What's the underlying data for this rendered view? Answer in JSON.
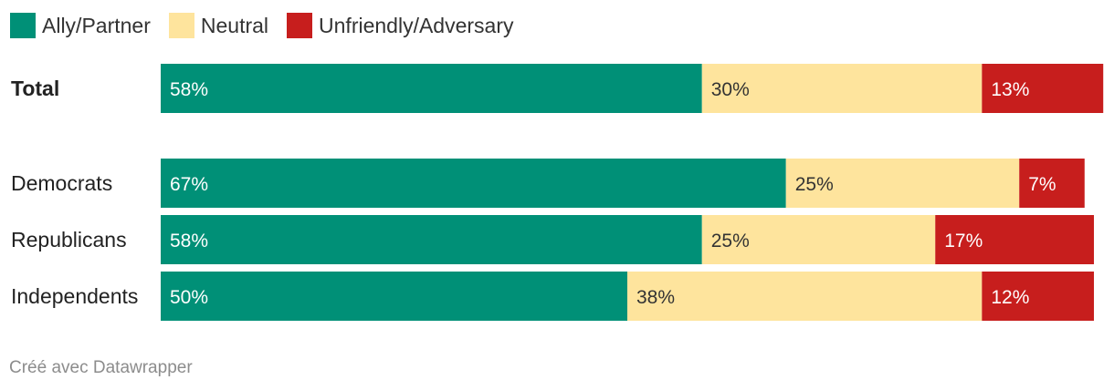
{
  "legend": [
    {
      "label": "Ally/Partner",
      "color": "#009077"
    },
    {
      "label": "Neutral",
      "color": "#fee49d"
    },
    {
      "label": "Unfriendly/Adversary",
      "color": "#c71e1d"
    }
  ],
  "chart_data": {
    "type": "bar",
    "orientation": "horizontal",
    "stacked": true,
    "legend_placement": "top-left",
    "categories": [
      "Total",
      "Democrats",
      "Republicans",
      "Independents"
    ],
    "series": [
      {
        "name": "Ally/Partner",
        "color": "#009077",
        "label_color": "#ffffff",
        "values": [
          58,
          67,
          58,
          50
        ],
        "labels": [
          "58%",
          "67%",
          "58%",
          "50%"
        ]
      },
      {
        "name": "Neutral",
        "color": "#fee49d",
        "label_color": "#333333",
        "values": [
          30,
          25,
          25,
          38
        ],
        "labels": [
          "30%",
          "25%",
          "25%",
          "38%"
        ]
      },
      {
        "name": "Unfriendly/Adversary",
        "color": "#c71e1d",
        "label_color": "#ffffff",
        "values": [
          13,
          7,
          17,
          12
        ],
        "labels": [
          "13%",
          "7%",
          "17%",
          "12%"
        ]
      }
    ]
  },
  "footer": "Créé avec Datawrapper"
}
